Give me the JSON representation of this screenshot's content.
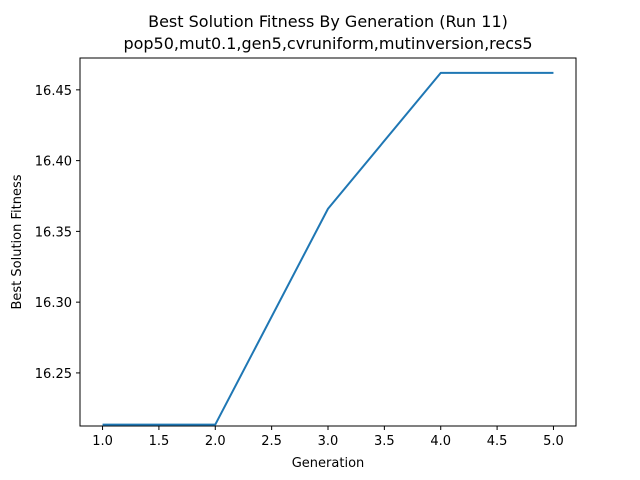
{
  "chart_data": {
    "type": "line",
    "title": "Best Solution Fitness By Generation (Run 11)",
    "subtitle": "pop50,mut0.1,gen5,cvruniform,mutinversion,recs5",
    "xlabel": "Generation",
    "ylabel": "Best Solution Fitness",
    "xlim": [
      0.8,
      5.2
    ],
    "ylim": [
      16.2125,
      16.4725
    ],
    "xticks": [
      "1.0",
      "1.5",
      "2.0",
      "2.5",
      "3.0",
      "3.5",
      "4.0",
      "4.5",
      "5.0"
    ],
    "yticks": [
      "16.25",
      "16.30",
      "16.35",
      "16.40",
      "16.45"
    ],
    "grid": false,
    "series": [
      {
        "x": [
          1,
          2,
          3,
          4,
          5
        ],
        "values": [
          16.2135,
          16.2135,
          16.366,
          16.462,
          16.462
        ],
        "color": "#1f77b4"
      }
    ]
  }
}
